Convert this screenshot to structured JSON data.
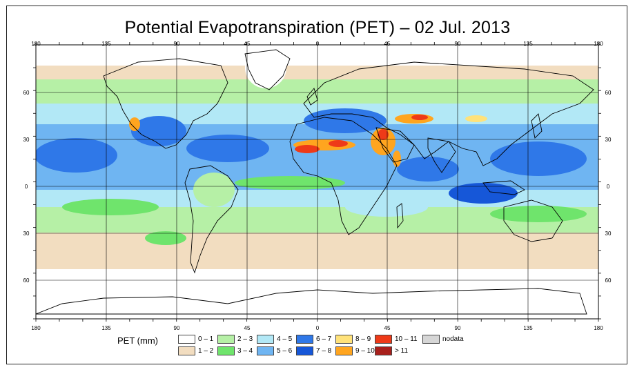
{
  "title": "Potential Evapotranspiration (PET) – 02 Jul. 2013",
  "axes": {
    "top_lon_labels": [
      "180",
      "135",
      "90",
      "45",
      "0",
      "45",
      "90",
      "135",
      "180"
    ],
    "bottom_lon_labels": [
      "180",
      "135",
      "90",
      "45",
      "0",
      "45",
      "90",
      "135",
      "180"
    ],
    "left_lat_labels": [
      "60",
      "30",
      "0",
      "30",
      "60"
    ],
    "right_lat_labels": [
      "60",
      "30",
      "0",
      "30",
      "60"
    ]
  },
  "legend": {
    "title": "PET (mm)",
    "items": [
      {
        "label": "0 – 1",
        "color": "#ffffff"
      },
      {
        "label": "1 – 2",
        "color": "#f2ddc0"
      },
      {
        "label": "2 – 3",
        "color": "#b6f0a6"
      },
      {
        "label": "3 – 4",
        "color": "#6fe46c"
      },
      {
        "label": "4 – 5",
        "color": "#b2e8f6"
      },
      {
        "label": "5 – 6",
        "color": "#6fb5f2"
      },
      {
        "label": "6 – 7",
        "color": "#2f78e8"
      },
      {
        "label": "7 – 8",
        "color": "#1657d8"
      },
      {
        "label": "8 – 9",
        "color": "#ffe27a"
      },
      {
        "label": "9 – 10",
        "color": "#ffa51f"
      },
      {
        "label": "10 – 11",
        "color": "#ee3a18"
      },
      {
        "label": "> 11",
        "color": "#a8201c"
      },
      {
        "label": "nodata",
        "color": "#d6d6d6"
      }
    ]
  }
}
